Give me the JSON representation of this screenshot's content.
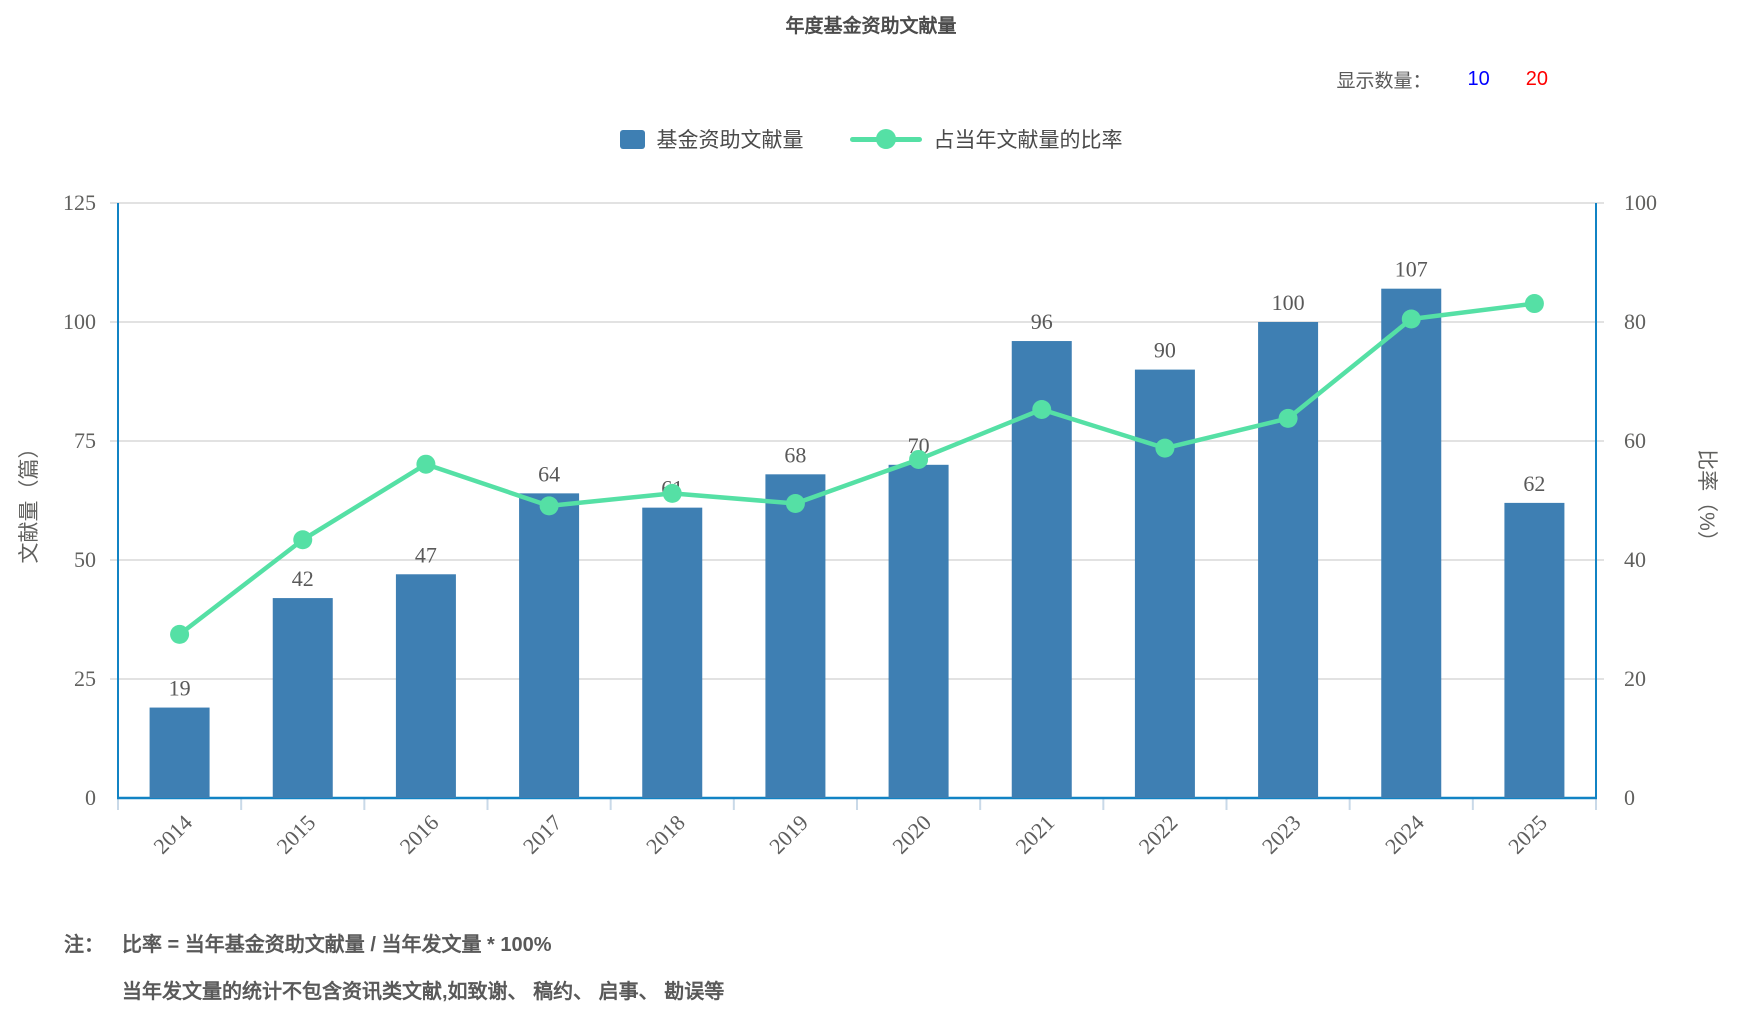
{
  "header": {
    "title": "年度基金资助文献量"
  },
  "display_count": {
    "label": "显示数量：",
    "options": [
      {
        "value": "10",
        "color": "#0000fe"
      },
      {
        "value": "20",
        "color": "#fe0000"
      }
    ]
  },
  "legend": [
    {
      "label": "基金资助文献量",
      "type": "bar",
      "color": "#3e7fb3"
    },
    {
      "label": "占当年文献量的比率",
      "type": "line",
      "color": "#55e0a5"
    }
  ],
  "chart_data": {
    "type": "bar",
    "title": "年度基金资助文献量",
    "categories": [
      "2014",
      "2015",
      "2016",
      "2017",
      "2018",
      "2019",
      "2020",
      "2021",
      "2022",
      "2023",
      "2024",
      "2025"
    ],
    "series": [
      {
        "name": "基金资助文献量",
        "type": "bar",
        "axis": "left",
        "color": "#3e7fb3",
        "values": [
          19,
          42,
          47,
          64,
          61,
          68,
          70,
          96,
          90,
          100,
          107,
          62
        ]
      },
      {
        "name": "占当年文献量的比率",
        "type": "line",
        "axis": "right",
        "color": "#55e0a5",
        "values": [
          27.5,
          43.4,
          56.1,
          49.1,
          51.2,
          49.5,
          56.9,
          65.3,
          58.8,
          63.8,
          80.5,
          83.1
        ]
      }
    ],
    "left_axis": {
      "label": "文献量（篇）",
      "min": 0,
      "max": 125,
      "ticks": [
        0,
        25,
        50,
        75,
        100,
        125
      ]
    },
    "right_axis": {
      "label": "比率（%）",
      "min": 0,
      "max": 100,
      "ticks": [
        0,
        20,
        40,
        60,
        80,
        100
      ]
    },
    "grid": true,
    "legend_position": "top",
    "colors": {
      "axis_line": "#1183c4",
      "grid_line": "#d8d8d8",
      "x_tick": "#c9d9e8",
      "tick_text": "#60605e",
      "value_label": "#595959"
    }
  },
  "notes": {
    "prefix": "注：",
    "lines": [
      "比率 = 当年基金资助文献量 / 当年发文量 * 100%",
      "当年发文量的统计不包含资讯类文献,如致谢、 稿约、 启事、 勘误等"
    ]
  }
}
